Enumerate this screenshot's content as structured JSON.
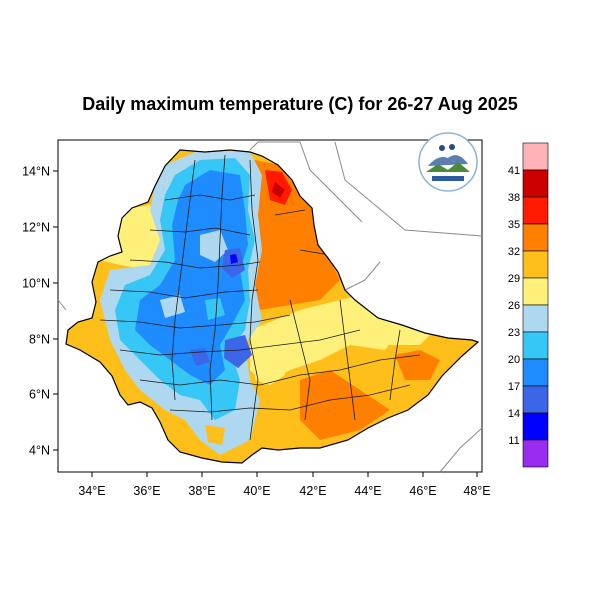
{
  "title": "Daily maximum temperature (C) for 26-27 Aug 2025",
  "axes": {
    "x_ticks": [
      "34°E",
      "36°E",
      "38°E",
      "40°E",
      "42°E",
      "44°E",
      "46°E",
      "48°E"
    ],
    "y_ticks": [
      "14°N",
      "12°N",
      "10°N",
      "8°N",
      "6°N",
      "4°N"
    ]
  },
  "colorbar": {
    "colors": [
      "#9a2cf2",
      "#0000ff",
      "#3c66e8",
      "#1e8cff",
      "#37c7f7",
      "#add8ef",
      "#fff07a",
      "#ffbf1a",
      "#ff7f00",
      "#ff1a00",
      "#cc0000",
      "#ffb3b8"
    ],
    "labels": [
      "11",
      "14",
      "17",
      "20",
      "23",
      "26",
      "29",
      "32",
      "35",
      "38",
      "41"
    ]
  },
  "legend_icons": [
    "logo-icon"
  ]
}
